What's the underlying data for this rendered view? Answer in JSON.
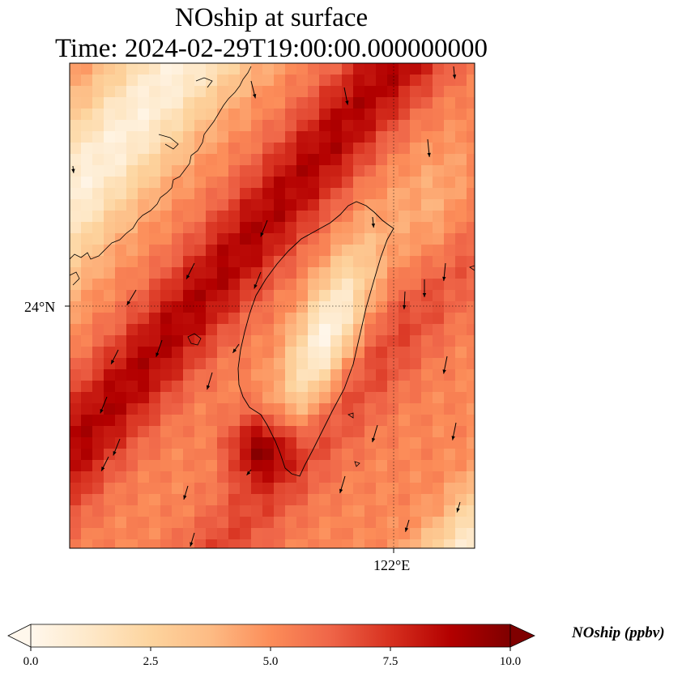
{
  "title": {
    "line1": "NOship at surface",
    "line2": "Time: 2024-02-29T19:00:00.000000000"
  },
  "map": {
    "lat_tick_label": "24°N",
    "lon_tick_label": "122°E",
    "gridlines": "dotted",
    "field": "NOship",
    "units": "ppbv"
  },
  "colorbar": {
    "label": "NOship (ppbv)",
    "min": 0.0,
    "max": 10.0,
    "extend": "both",
    "ticks": [
      "0.0",
      "2.5",
      "5.0",
      "7.5",
      "10.0"
    ],
    "colormap_stops": [
      "#fff7ec",
      "#fee8c8",
      "#fdd49e",
      "#fdbb84",
      "#fc8d59",
      "#ef6548",
      "#d7301f",
      "#b30000",
      "#7f0000"
    ]
  },
  "colors": {
    "coastline": "#000000",
    "wind_arrow": "#000000"
  }
}
